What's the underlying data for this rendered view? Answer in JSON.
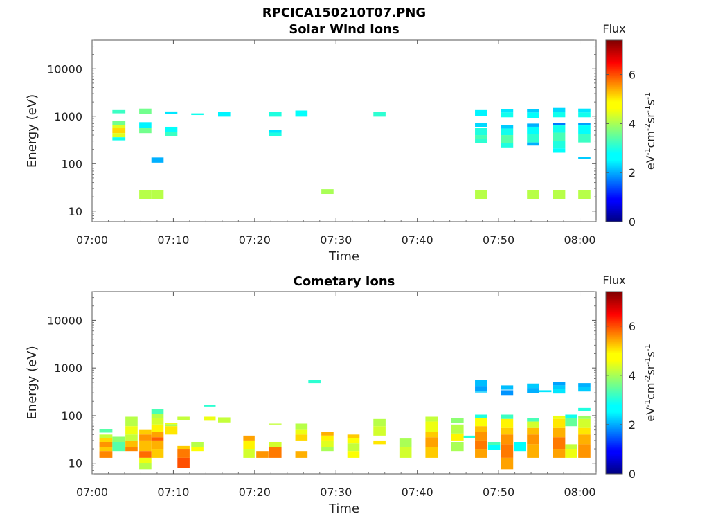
{
  "figure_title": "RPCICA150210T07.PNG",
  "chart_data": [
    {
      "type": "heatmap",
      "title": "Solar Wind Ions",
      "xlabel": "Time",
      "ylabel": "Energy (eV)",
      "x_ticks": [
        "07:00",
        "07:10",
        "07:20",
        "07:30",
        "07:40",
        "07:50",
        "08:00"
      ],
      "x_range_min": [
        0,
        62
      ],
      "y_scale": "log",
      "y_ticks": [
        "10",
        "100",
        "1000",
        "10000"
      ],
      "y_range": [
        6,
        40000
      ],
      "colorbar": {
        "title": "Flux",
        "ticks": [
          "0",
          "2",
          "4",
          "6"
        ],
        "range": [
          0,
          7.4
        ],
        "label_parts": [
          "eV",
          "-1",
          "cm",
          "-2",
          "sr",
          "-1",
          "s",
          "-1"
        ]
      },
      "cells": [
        [
          2.5,
          4.1,
          1150,
          1350,
          3.2
        ],
        [
          2.5,
          4.1,
          650,
          800,
          3.6
        ],
        [
          2.5,
          4.1,
          560,
          650,
          4.4
        ],
        [
          2.5,
          4.1,
          440,
          560,
          4.9
        ],
        [
          2.5,
          4.1,
          360,
          440,
          4.4
        ],
        [
          2.5,
          4.1,
          310,
          360,
          2.9
        ],
        [
          5.8,
          7.3,
          1100,
          1450,
          3.6
        ],
        [
          5.8,
          7.3,
          560,
          750,
          2.7
        ],
        [
          5.8,
          7.3,
          440,
          560,
          3.6
        ],
        [
          5.8,
          7.3,
          18,
          28,
          4.1
        ],
        [
          7.3,
          8.8,
          105,
          135,
          2.2
        ],
        [
          7.3,
          8.8,
          18,
          28,
          4.1
        ],
        [
          9,
          10.5,
          1120,
          1260,
          2.6
        ],
        [
          9,
          10.5,
          460,
          600,
          2.8
        ],
        [
          9,
          10.5,
          380,
          460,
          3.2
        ],
        [
          12.2,
          13.7,
          1060,
          1150,
          2.9
        ],
        [
          15.5,
          17,
          980,
          1220,
          2.7
        ],
        [
          21.8,
          23.3,
          980,
          1250,
          3.0
        ],
        [
          21.8,
          23.3,
          450,
          520,
          2.6
        ],
        [
          21.8,
          23.3,
          380,
          450,
          3.0
        ],
        [
          25,
          26.5,
          980,
          1320,
          2.8
        ],
        [
          28.2,
          29.7,
          23,
          29,
          4.0
        ],
        [
          34.6,
          36.1,
          980,
          1220,
          3.1
        ],
        [
          47.1,
          48.6,
          1000,
          1350,
          2.7
        ],
        [
          47.1,
          48.6,
          580,
          720,
          2.5
        ],
        [
          47.1,
          48.6,
          400,
          560,
          3.0
        ],
        [
          47.1,
          48.6,
          330,
          400,
          3.3
        ],
        [
          47.1,
          48.6,
          270,
          330,
          3.1
        ],
        [
          47.1,
          48.6,
          18,
          28,
          4.1
        ],
        [
          50.3,
          51.8,
          1200,
          1400,
          2.6
        ],
        [
          50.3,
          51.8,
          950,
          1200,
          2.9
        ],
        [
          50.3,
          51.8,
          550,
          650,
          2.4
        ],
        [
          50.3,
          51.8,
          400,
          550,
          2.9
        ],
        [
          50.3,
          51.8,
          270,
          400,
          3.4
        ],
        [
          50.3,
          51.8,
          220,
          270,
          3.0
        ],
        [
          53.5,
          55,
          1200,
          1400,
          2.4
        ],
        [
          53.5,
          55,
          900,
          1200,
          2.8
        ],
        [
          53.5,
          55,
          600,
          700,
          2.2
        ],
        [
          53.5,
          55,
          420,
          600,
          2.8
        ],
        [
          53.5,
          55,
          280,
          420,
          3.1
        ],
        [
          53.5,
          55,
          240,
          280,
          2.2
        ],
        [
          53.5,
          55,
          18,
          28,
          4.1
        ],
        [
          56.7,
          58.2,
          1250,
          1500,
          2.5
        ],
        [
          56.7,
          58.2,
          950,
          1250,
          2.9
        ],
        [
          56.7,
          58.2,
          640,
          720,
          1.8
        ],
        [
          56.7,
          58.2,
          450,
          640,
          2.9
        ],
        [
          56.7,
          58.2,
          300,
          450,
          3.3
        ],
        [
          56.7,
          58.2,
          210,
          300,
          3.0
        ],
        [
          56.7,
          58.2,
          170,
          210,
          2.8
        ],
        [
          56.7,
          58.2,
          18,
          28,
          4.1
        ],
        [
          59.8,
          61.3,
          1200,
          1450,
          2.6
        ],
        [
          59.8,
          61.3,
          950,
          1200,
          2.9
        ],
        [
          59.8,
          61.3,
          640,
          720,
          2.1
        ],
        [
          59.8,
          61.3,
          420,
          640,
          2.8
        ],
        [
          59.8,
          61.3,
          280,
          420,
          3.2
        ],
        [
          59.8,
          61.3,
          125,
          140,
          2.4
        ],
        [
          59.8,
          61.3,
          18,
          28,
          4.1
        ]
      ]
    },
    {
      "type": "heatmap",
      "title": "Cometary Ions",
      "xlabel": "Time",
      "ylabel": "Energy (eV)",
      "x_ticks": [
        "07:00",
        "07:10",
        "07:20",
        "07:30",
        "07:40",
        "07:50",
        "08:00"
      ],
      "x_range_min": [
        0,
        62
      ],
      "y_scale": "log",
      "y_ticks": [
        "10",
        "100",
        "1000",
        "10000"
      ],
      "y_range": [
        6,
        40000
      ],
      "colorbar": {
        "title": "Flux",
        "ticks": [
          "0",
          "2",
          "4",
          "6"
        ],
        "range": [
          0,
          7.4
        ],
        "label_parts": [
          "eV",
          "-1",
          "cm",
          "-2",
          "sr",
          "-1",
          "s",
          "-1"
        ]
      },
      "cells": [
        [
          0.9,
          2.5,
          44,
          52,
          3.4
        ],
        [
          0.9,
          2.5,
          34,
          40,
          4.2
        ],
        [
          0.9,
          2.5,
          28,
          34,
          4.9
        ],
        [
          0.9,
          2.5,
          22,
          28,
          5.4
        ],
        [
          0.9,
          2.5,
          18,
          22,
          5.0
        ],
        [
          0.9,
          2.5,
          13,
          18,
          5.5
        ],
        [
          2.5,
          4.1,
          28,
          36,
          3.8
        ],
        [
          2.5,
          4.1,
          18,
          28,
          3.4
        ],
        [
          4.1,
          5.6,
          60,
          95,
          4.1
        ],
        [
          4.1,
          5.6,
          40,
          60,
          4.5
        ],
        [
          4.1,
          5.6,
          30,
          40,
          4.2
        ],
        [
          4.1,
          5.6,
          22,
          30,
          5.1
        ],
        [
          4.1,
          5.6,
          18,
          22,
          5.5
        ],
        [
          5.8,
          7.3,
          40,
          50,
          5.0
        ],
        [
          5.8,
          7.3,
          30,
          40,
          5.4
        ],
        [
          5.8,
          7.3,
          18,
          30,
          5.1
        ],
        [
          5.8,
          7.3,
          13,
          18,
          5.7
        ],
        [
          5.8,
          7.3,
          10,
          13,
          4.5
        ],
        [
          5.8,
          7.3,
          7.5,
          10,
          4.1
        ],
        [
          7.3,
          8.8,
          110,
          135,
          3.3
        ],
        [
          7.3,
          8.8,
          90,
          110,
          4.1
        ],
        [
          7.3,
          8.8,
          65,
          90,
          4.3
        ],
        [
          7.3,
          8.8,
          45,
          65,
          4.7
        ],
        [
          7.3,
          8.8,
          35,
          45,
          5.3
        ],
        [
          7.3,
          8.8,
          30,
          35,
          5.8
        ],
        [
          7.3,
          8.8,
          20,
          30,
          5.2
        ],
        [
          7.3,
          8.8,
          13,
          20,
          5.0
        ],
        [
          9,
          10.5,
          66,
          70,
          4.5
        ],
        [
          9,
          10.5,
          60,
          66,
          4.0
        ],
        [
          9,
          10.5,
          40,
          60,
          4.8
        ],
        [
          10.5,
          12,
          80,
          95,
          4.2
        ],
        [
          10.5,
          12,
          20,
          23,
          5.0
        ],
        [
          10.5,
          12,
          13,
          20,
          5.6
        ],
        [
          10.5,
          12,
          8,
          13,
          5.9
        ],
        [
          12.2,
          13.7,
          22,
          28,
          4.1
        ],
        [
          12.2,
          13.7,
          18,
          22,
          4.6
        ],
        [
          13.8,
          15.2,
          155,
          168,
          3.1
        ],
        [
          13.8,
          15.2,
          78,
          95,
          4.5
        ],
        [
          15.5,
          17,
          72,
          92,
          4.2
        ],
        [
          18.6,
          20,
          30,
          38,
          5.3
        ],
        [
          18.6,
          20,
          20,
          30,
          4.7
        ],
        [
          18.6,
          20,
          13,
          20,
          4.3
        ],
        [
          20.2,
          21.7,
          13,
          18,
          5.4
        ],
        [
          21.8,
          23.3,
          65,
          68,
          4.2
        ],
        [
          21.8,
          23.3,
          22,
          28,
          4.3
        ],
        [
          21.8,
          23.3,
          13,
          22,
          5.6
        ],
        [
          25,
          26.5,
          50,
          68,
          4.1
        ],
        [
          25,
          26.5,
          40,
          50,
          4.5
        ],
        [
          25,
          26.5,
          30,
          40,
          4.9
        ],
        [
          25,
          26.5,
          13,
          18,
          5.2
        ],
        [
          26.6,
          28.1,
          480,
          560,
          3.1
        ],
        [
          28.2,
          29.7,
          38,
          45,
          5.2
        ],
        [
          28.2,
          29.7,
          30,
          38,
          4.7
        ],
        [
          28.2,
          29.7,
          22,
          30,
          4.4
        ],
        [
          28.2,
          29.7,
          18,
          22,
          4.0
        ],
        [
          31.4,
          32.9,
          34,
          40,
          5.0
        ],
        [
          31.4,
          32.9,
          26,
          34,
          4.6
        ],
        [
          31.4,
          32.9,
          18,
          26,
          4.2
        ],
        [
          31.4,
          32.9,
          13,
          18,
          4.6
        ],
        [
          34.6,
          36.1,
          60,
          85,
          4.1
        ],
        [
          34.6,
          36.1,
          38,
          60,
          4.3
        ],
        [
          34.6,
          36.1,
          25,
          30,
          4.8
        ],
        [
          37.8,
          39.3,
          22,
          33,
          4.0
        ],
        [
          37.8,
          39.3,
          13,
          22,
          4.3
        ],
        [
          41,
          42.5,
          75,
          95,
          4.2
        ],
        [
          41,
          42.5,
          45,
          75,
          4.5
        ],
        [
          41,
          42.5,
          35,
          45,
          5.0
        ],
        [
          41,
          42.5,
          22,
          35,
          5.3
        ],
        [
          41,
          42.5,
          13,
          22,
          5.0
        ],
        [
          44.2,
          45.7,
          70,
          90,
          3.8
        ],
        [
          44.2,
          45.7,
          42,
          65,
          4.1
        ],
        [
          44.2,
          45.7,
          30,
          42,
          4.7
        ],
        [
          44.2,
          45.7,
          18,
          28,
          4.0
        ],
        [
          45.7,
          47.2,
          34,
          38,
          3.0
        ],
        [
          47.1,
          48.6,
          420,
          560,
          2.3
        ],
        [
          47.1,
          48.6,
          330,
          420,
          2.1
        ],
        [
          47.1,
          48.6,
          305,
          320,
          2.4
        ],
        [
          47.1,
          48.6,
          90,
          105,
          3.0
        ],
        [
          47.1,
          48.6,
          60,
          90,
          4.6
        ],
        [
          47.1,
          48.6,
          45,
          60,
          5.1
        ],
        [
          47.1,
          48.6,
          30,
          45,
          5.4
        ],
        [
          47.1,
          48.6,
          20,
          30,
          5.6
        ],
        [
          47.1,
          48.6,
          13,
          20,
          5.3
        ],
        [
          48.7,
          50.2,
          24,
          28,
          3.3
        ],
        [
          48.7,
          50.2,
          19,
          24,
          2.8
        ],
        [
          50.3,
          51.8,
          350,
          430,
          2.3
        ],
        [
          50.3,
          51.8,
          270,
          340,
          2.0
        ],
        [
          50.3,
          51.8,
          85,
          105,
          3.2
        ],
        [
          50.3,
          51.8,
          55,
          85,
          4.7
        ],
        [
          50.3,
          51.8,
          40,
          55,
          5.0
        ],
        [
          50.3,
          51.8,
          25,
          40,
          5.4
        ],
        [
          50.3,
          51.8,
          13,
          25,
          5.6
        ],
        [
          50.3,
          51.8,
          7.5,
          13,
          5.3
        ],
        [
          51.9,
          53.4,
          18,
          28,
          2.8
        ],
        [
          53.5,
          55,
          380,
          470,
          2.4
        ],
        [
          53.5,
          55,
          300,
          380,
          2.2
        ],
        [
          53.5,
          55,
          75,
          90,
          3.3
        ],
        [
          53.5,
          55,
          55,
          75,
          4.3
        ],
        [
          53.5,
          55,
          40,
          55,
          5.1
        ],
        [
          53.5,
          55,
          25,
          40,
          5.4
        ],
        [
          53.5,
          55,
          13,
          25,
          5.2
        ],
        [
          55,
          56.5,
          310,
          340,
          2.6
        ],
        [
          56.7,
          58.2,
          430,
          500,
          2.1
        ],
        [
          56.7,
          58.2,
          360,
          430,
          2.4
        ],
        [
          56.7,
          58.2,
          290,
          360,
          2.6
        ],
        [
          56.7,
          58.2,
          85,
          100,
          4.5
        ],
        [
          56.7,
          58.2,
          55,
          85,
          4.8
        ],
        [
          56.7,
          58.2,
          35,
          55,
          5.2
        ],
        [
          56.7,
          58.2,
          20,
          35,
          5.6
        ],
        [
          56.7,
          58.2,
          13,
          20,
          5.3
        ],
        [
          58.2,
          59.7,
          90,
          105,
          2.9
        ],
        [
          58.2,
          59.7,
          60,
          90,
          3.5
        ],
        [
          58.2,
          59.7,
          20,
          25,
          4.2
        ],
        [
          58.2,
          59.7,
          13,
          20,
          4.5
        ],
        [
          59.8,
          61.3,
          400,
          480,
          2.2
        ],
        [
          59.8,
          61.3,
          320,
          400,
          2.4
        ],
        [
          59.8,
          61.3,
          125,
          145,
          3.0
        ],
        [
          59.8,
          61.3,
          85,
          100,
          3.9
        ],
        [
          59.8,
          61.3,
          55,
          85,
          4.3
        ],
        [
          59.8,
          61.3,
          40,
          55,
          4.8
        ],
        [
          59.8,
          61.3,
          25,
          40,
          5.2
        ],
        [
          59.8,
          61.3,
          13,
          25,
          5.4
        ]
      ]
    }
  ]
}
